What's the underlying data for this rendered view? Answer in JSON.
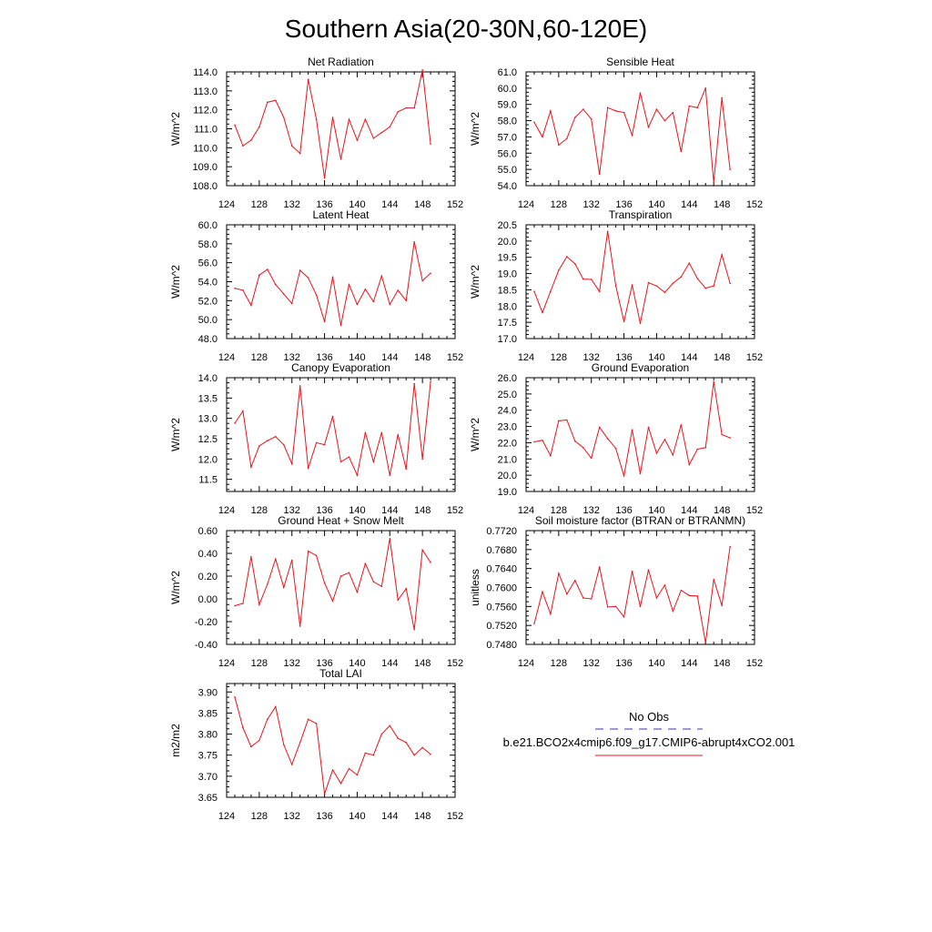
{
  "figure": {
    "title": "Southern Asia(20-30N,60-120E)",
    "x_axis_range": [
      124,
      152
    ],
    "x_ticks": [
      124,
      128,
      132,
      136,
      140,
      144,
      148,
      152
    ],
    "line_color": "#e8141c",
    "frame_color": "#000000",
    "background": "#ffffff"
  },
  "legend": {
    "obs_label": "No Obs",
    "obs_color": "#3a3aa0",
    "obs_style": "dashed",
    "model_label": "b.e21.BCO2x4cmip6.f09_g17.CMIP6-abrupt4xCO2.001",
    "model_color": "#e8141c",
    "model_style": "solid"
  },
  "chart_data": [
    {
      "type": "line",
      "title": "Net Radiation",
      "ylabel": "W/m^2",
      "xlim": [
        124,
        152
      ],
      "ylim": [
        108.0,
        114.0
      ],
      "y_ticks": [
        "108.0",
        "109.0",
        "110.0",
        "111.0",
        "112.0",
        "113.0",
        "114.0"
      ],
      "x": [
        125,
        126,
        127,
        128,
        129,
        130,
        131,
        132,
        133,
        134,
        135,
        136,
        137,
        138,
        139,
        140,
        141,
        142,
        143,
        144,
        145,
        146,
        147,
        148,
        149
      ],
      "series": [
        {
          "values": [
            111.2,
            110.1,
            110.4,
            111.1,
            112.4,
            112.5,
            111.6,
            110.1,
            109.7,
            113.6,
            111.5,
            108.4,
            111.6,
            109.4,
            111.5,
            110.4,
            111.5,
            110.5,
            110.8,
            111.1,
            111.9,
            112.1,
            112.1,
            114.1,
            110.2
          ]
        }
      ]
    },
    {
      "type": "line",
      "title": "Sensible Heat",
      "ylabel": "W/m^2",
      "xlim": [
        124,
        152
      ],
      "ylim": [
        54.0,
        61.0
      ],
      "y_ticks": [
        "54.0",
        "55.0",
        "56.0",
        "57.0",
        "58.0",
        "59.0",
        "60.0",
        "61.0"
      ],
      "x": [
        125,
        126,
        127,
        128,
        129,
        130,
        131,
        132,
        133,
        134,
        135,
        136,
        137,
        138,
        139,
        140,
        141,
        142,
        143,
        144,
        145,
        146,
        147,
        148,
        149
      ],
      "series": [
        {
          "values": [
            57.9,
            57.0,
            58.6,
            56.5,
            56.9,
            58.2,
            58.7,
            58.1,
            54.7,
            58.8,
            58.6,
            58.5,
            57.1,
            59.7,
            57.6,
            58.7,
            58.0,
            58.5,
            56.1,
            58.9,
            58.8,
            60.0,
            54.2,
            59.4,
            55.0
          ]
        }
      ]
    },
    {
      "type": "line",
      "title": "Latent Heat",
      "ylabel": "W/m^2",
      "xlim": [
        124,
        152
      ],
      "ylim": [
        48.0,
        60.0
      ],
      "y_ticks": [
        "48.0",
        "50.0",
        "52.0",
        "54.0",
        "56.0",
        "58.0",
        "60.0"
      ],
      "x": [
        125,
        126,
        127,
        128,
        129,
        130,
        131,
        132,
        133,
        134,
        135,
        136,
        137,
        138,
        139,
        140,
        141,
        142,
        143,
        144,
        145,
        146,
        147,
        148,
        149
      ],
      "series": [
        {
          "values": [
            53.3,
            53.1,
            51.5,
            54.7,
            55.3,
            53.7,
            52.7,
            51.7,
            55.2,
            54.4,
            52.6,
            49.8,
            54.5,
            49.4,
            53.7,
            51.6,
            53.2,
            51.9,
            54.6,
            51.6,
            53.1,
            52.0,
            58.2,
            54.1,
            54.9
          ]
        }
      ]
    },
    {
      "type": "line",
      "title": "Transpiration",
      "ylabel": "W/m^2",
      "xlim": [
        124,
        152
      ],
      "ylim": [
        17.0,
        20.5
      ],
      "y_ticks": [
        "17.0",
        "17.5",
        "18.0",
        "18.5",
        "19.0",
        "19.5",
        "20.0",
        "20.5"
      ],
      "x": [
        125,
        126,
        127,
        128,
        129,
        130,
        131,
        132,
        133,
        134,
        135,
        136,
        137,
        138,
        139,
        140,
        141,
        142,
        143,
        144,
        145,
        146,
        147,
        148,
        149
      ],
      "series": [
        {
          "values": [
            18.45,
            17.8,
            18.45,
            19.1,
            19.52,
            19.3,
            18.83,
            18.82,
            18.45,
            20.3,
            18.62,
            17.52,
            18.65,
            17.47,
            18.72,
            18.62,
            18.42,
            18.7,
            18.9,
            19.32,
            18.85,
            18.55,
            18.62,
            19.58,
            18.7
          ]
        }
      ]
    },
    {
      "type": "line",
      "title": "Canopy Evaporation",
      "ylabel": "W/m^2",
      "xlim": [
        124,
        152
      ],
      "ylim": [
        11.2,
        14.0
      ],
      "y_ticks": [
        "11.5",
        "12.0",
        "12.5",
        "13.0",
        "13.5",
        "14.0"
      ],
      "x": [
        125,
        126,
        127,
        128,
        129,
        130,
        131,
        132,
        133,
        134,
        135,
        136,
        137,
        138,
        139,
        140,
        141,
        142,
        143,
        144,
        145,
        146,
        147,
        148,
        149
      ],
      "series": [
        {
          "values": [
            12.88,
            13.18,
            11.8,
            12.32,
            12.45,
            12.55,
            12.35,
            11.88,
            13.8,
            11.77,
            12.4,
            12.35,
            13.05,
            11.93,
            12.05,
            11.6,
            12.65,
            11.93,
            12.65,
            11.6,
            12.6,
            11.75,
            13.85,
            12.0,
            13.9
          ]
        }
      ]
    },
    {
      "type": "line",
      "title": "Ground Evaporation",
      "ylabel": "W/m^2",
      "xlim": [
        124,
        152
      ],
      "ylim": [
        19.0,
        26.0
      ],
      "y_ticks": [
        "19.0",
        "20.0",
        "21.0",
        "22.0",
        "23.0",
        "24.0",
        "25.0",
        "26.0"
      ],
      "x": [
        125,
        126,
        127,
        128,
        129,
        130,
        131,
        132,
        133,
        134,
        135,
        136,
        137,
        138,
        139,
        140,
        141,
        142,
        143,
        144,
        145,
        146,
        147,
        148,
        149
      ],
      "series": [
        {
          "values": [
            22.05,
            22.15,
            21.2,
            23.35,
            23.4,
            22.1,
            21.7,
            21.05,
            22.95,
            22.25,
            21.65,
            19.95,
            22.8,
            20.1,
            22.95,
            21.35,
            22.2,
            21.25,
            23.1,
            20.65,
            21.6,
            21.7,
            25.75,
            22.5,
            22.3
          ]
        }
      ]
    },
    {
      "type": "line",
      "title": "Ground Heat + Snow Melt",
      "ylabel": "W/m^2",
      "xlim": [
        124,
        152
      ],
      "ylim": [
        -0.4,
        0.6
      ],
      "y_ticks": [
        "-0.40",
        "-0.20",
        "0.00",
        "0.20",
        "0.40",
        "0.60"
      ],
      "x": [
        125,
        126,
        127,
        128,
        129,
        130,
        131,
        132,
        133,
        134,
        135,
        136,
        137,
        138,
        139,
        140,
        141,
        142,
        143,
        144,
        145,
        146,
        147,
        148,
        149
      ],
      "series": [
        {
          "values": [
            -0.06,
            -0.04,
            0.37,
            -0.05,
            0.13,
            0.35,
            0.1,
            0.34,
            -0.24,
            0.42,
            0.38,
            0.14,
            -0.02,
            0.2,
            0.23,
            0.06,
            0.31,
            0.15,
            0.11,
            0.53,
            -0.01,
            0.09,
            -0.27,
            0.43,
            0.32
          ]
        }
      ]
    },
    {
      "type": "line",
      "title": "Soil moisture factor (BTRAN or BTRANMN)",
      "ylabel": "unitless",
      "xlim": [
        124,
        152
      ],
      "ylim": [
        0.748,
        0.772
      ],
      "y_ticks": [
        "0.7480",
        "0.7520",
        "0.7560",
        "0.7600",
        "0.7640",
        "0.7680",
        "0.7720"
      ],
      "x": [
        125,
        126,
        127,
        128,
        129,
        130,
        131,
        132,
        133,
        134,
        135,
        136,
        137,
        138,
        139,
        140,
        141,
        142,
        143,
        144,
        145,
        146,
        147,
        148,
        149
      ],
      "series": [
        {
          "values": [
            0.7524,
            0.7591,
            0.7544,
            0.763,
            0.7586,
            0.7615,
            0.7578,
            0.7576,
            0.7643,
            0.7559,
            0.756,
            0.7538,
            0.7634,
            0.756,
            0.7637,
            0.7578,
            0.7605,
            0.755,
            0.7594,
            0.7583,
            0.7582,
            0.7483,
            0.7617,
            0.7562,
            0.7686
          ]
        }
      ]
    },
    {
      "type": "line",
      "title": "Total LAI",
      "ylabel": "m2/m2",
      "xlim": [
        124,
        152
      ],
      "ylim": [
        3.65,
        3.92
      ],
      "y_ticks": [
        "3.65",
        "3.70",
        "3.75",
        "3.80",
        "3.85",
        "3.90"
      ],
      "x": [
        125,
        126,
        127,
        128,
        129,
        130,
        131,
        132,
        133,
        134,
        135,
        136,
        137,
        138,
        139,
        140,
        141,
        142,
        143,
        144,
        145,
        146,
        147,
        148,
        149
      ],
      "series": [
        {
          "values": [
            3.888,
            3.815,
            3.77,
            3.785,
            3.835,
            3.865,
            3.775,
            3.728,
            3.78,
            3.835,
            3.825,
            3.658,
            3.715,
            3.683,
            3.718,
            3.703,
            3.755,
            3.75,
            3.8,
            3.82,
            3.79,
            3.78,
            3.75,
            3.768,
            3.752
          ]
        }
      ]
    }
  ]
}
